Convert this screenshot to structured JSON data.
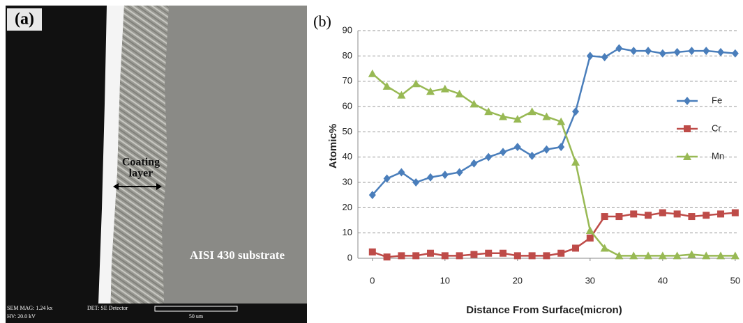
{
  "panel_a": {
    "label": "(a)",
    "annotation": [
      "Coating",
      "layer"
    ],
    "substrate": "AISI 430 substrate",
    "footer": [
      "SEM MAG: 1.24 kx",
      "DET: SE Detector",
      "HV: 20.0 kV",
      "50 um"
    ]
  },
  "chart_data": {
    "type": "line",
    "label": "(b)",
    "x_label": "Distance From Surface(micron)",
    "y_label": "Atomic%",
    "x": [
      0,
      2,
      4,
      6,
      8,
      10,
      12,
      14,
      16,
      18,
      20,
      22,
      24,
      26,
      28,
      30,
      32,
      34,
      36,
      38,
      40,
      42,
      44,
      46,
      48,
      50
    ],
    "series": [
      {
        "name": "Fe",
        "color": "#4a7ebb",
        "marker": "diamond",
        "values": [
          25,
          31.5,
          34,
          30,
          32,
          33,
          34,
          37.5,
          40,
          42,
          44,
          40.5,
          43,
          44,
          58,
          80,
          79.5,
          83,
          82,
          82,
          81,
          81.5,
          82,
          82,
          81.5,
          81
        ]
      },
      {
        "name": "Cr",
        "color": "#be4b48",
        "marker": "square",
        "values": [
          2.5,
          0.5,
          1,
          1,
          2,
          1,
          1,
          1.5,
          2,
          2,
          1,
          1,
          1,
          2,
          4,
          8,
          16.5,
          16.5,
          17.5,
          17,
          18,
          17.5,
          16.5,
          17,
          17.5,
          18
        ]
      },
      {
        "name": "Mn",
        "color": "#98b954",
        "marker": "triangle",
        "values": [
          73,
          68,
          64.5,
          69,
          66,
          67,
          65,
          61,
          58,
          56,
          55,
          58,
          56,
          54,
          38,
          11,
          4,
          1,
          1,
          1,
          1,
          1,
          1.5,
          1,
          1,
          1
        ]
      }
    ],
    "xlim": [
      -2,
      50.4
    ],
    "xticks": [
      0,
      10,
      20,
      30,
      40,
      50
    ],
    "ylim": [
      0,
      90
    ],
    "yticks": [
      0,
      10,
      20,
      30,
      40,
      50,
      60,
      70,
      80,
      90
    ],
    "grid": true,
    "legend": "right"
  }
}
